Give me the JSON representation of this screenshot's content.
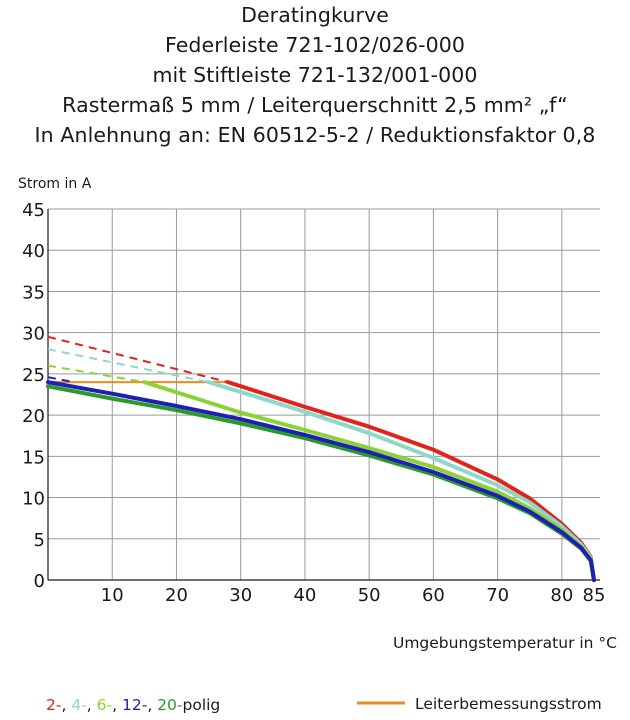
{
  "title_lines": [
    "Deratingkurve",
    "Federleiste 721-102/026-000",
    "mit Stiftleiste 721-132/001-000",
    "Rastermaß 5 mm / Leiterquerschnitt 2,5 mm² „f“",
    "In Anlehnung an: EN 60512-5-2 / Reduktionsfaktor 0,8"
  ],
  "legend": {
    "poles": [
      {
        "text": "2-",
        "color": "#e2231a"
      },
      {
        "text": ", ",
        "color": "#1a1a1a"
      },
      {
        "text": "4-",
        "color": "#8fd8c8"
      },
      {
        "text": ", ",
        "color": "#1a1a1a"
      },
      {
        "text": "6-",
        "color": "#8bd13a"
      },
      {
        "text": ", ",
        "color": "#1a1a1a"
      },
      {
        "text": "12-",
        "color": "#1f1fb4"
      },
      {
        "text": ", ",
        "color": "#1a1a1a"
      },
      {
        "text": "20-",
        "color": "#2a9a2a"
      },
      {
        "text": "polig",
        "color": "#1a1a1a"
      }
    ],
    "rated_current_label": "Leiterbemessungsstrom",
    "rated_current_color": "#f08a1c"
  },
  "chart_data": {
    "type": "line",
    "title": "Deratingkurve",
    "xlabel": "Umgebungstemperatur in °C",
    "ylabel": "Strom in A",
    "xlim": [
      0,
      86
    ],
    "ylim": [
      0,
      45
    ],
    "x_ticks": [
      10,
      20,
      30,
      40,
      50,
      60,
      70,
      80,
      85
    ],
    "x_tick_labels": [
      "10",
      "20",
      "30",
      "40",
      "50",
      "60",
      "70",
      "80",
      "85"
    ],
    "y_ticks": [
      0,
      5,
      10,
      15,
      20,
      25,
      30,
      35,
      40,
      45
    ],
    "y_tick_labels": [
      "0",
      "5",
      "10",
      "15",
      "20",
      "25",
      "30",
      "35",
      "40",
      "45"
    ],
    "grid": true,
    "legend_position": "bottom",
    "series": [
      {
        "name": "2-polig",
        "color": "#e2231a",
        "dashed_points": [
          [
            0,
            29.5
          ],
          [
            28,
            24
          ]
        ],
        "points": [
          [
            28,
            24
          ],
          [
            40,
            21
          ],
          [
            50,
            18.6
          ],
          [
            60,
            15.8
          ],
          [
            70,
            12.2
          ],
          [
            75,
            9.9
          ],
          [
            80,
            6.8
          ],
          [
            83,
            4.5
          ],
          [
            84.5,
            2.8
          ],
          [
            85,
            0
          ]
        ]
      },
      {
        "name": "4-polig",
        "color": "#8fd8c8",
        "dashed_points": [
          [
            0,
            28
          ],
          [
            25,
            24
          ]
        ],
        "points": [
          [
            25,
            24
          ],
          [
            40,
            20.4
          ],
          [
            50,
            17.8
          ],
          [
            60,
            14.8
          ],
          [
            70,
            11.5
          ],
          [
            75,
            9.4
          ],
          [
            80,
            6.5
          ],
          [
            83,
            4.3
          ],
          [
            84.5,
            2.7
          ],
          [
            85,
            0
          ]
        ]
      },
      {
        "name": "6-polig",
        "color": "#8bd13a",
        "dashed_points": [
          [
            0,
            26
          ],
          [
            15,
            24
          ]
        ],
        "points": [
          [
            15,
            24
          ],
          [
            30,
            20.3
          ],
          [
            40,
            18.2
          ],
          [
            50,
            16
          ],
          [
            60,
            13.7
          ],
          [
            70,
            10.7
          ],
          [
            75,
            8.7
          ],
          [
            80,
            6.1
          ],
          [
            83,
            4
          ],
          [
            84.5,
            2.5
          ],
          [
            85,
            0
          ]
        ]
      },
      {
        "name": "12-polig",
        "color": "#1f1fb4",
        "dashed_points": [
          [
            0,
            24.6
          ],
          [
            4,
            24
          ]
        ],
        "points": [
          [
            0,
            24
          ],
          [
            10,
            22.6
          ],
          [
            20,
            21.1
          ],
          [
            30,
            19.5
          ],
          [
            40,
            17.6
          ],
          [
            50,
            15.5
          ],
          [
            60,
            13.1
          ],
          [
            70,
            10.2
          ],
          [
            75,
            8.3
          ],
          [
            80,
            5.8
          ],
          [
            83,
            3.9
          ],
          [
            84.5,
            2.4
          ],
          [
            85,
            0
          ]
        ]
      },
      {
        "name": "20-polig",
        "color": "#2a9a2a",
        "dashed_points": [],
        "points": [
          [
            0,
            23.5
          ],
          [
            10,
            22
          ],
          [
            20,
            20.6
          ],
          [
            30,
            19
          ],
          [
            40,
            17.2
          ],
          [
            50,
            15.1
          ],
          [
            60,
            12.8
          ],
          [
            70,
            9.9
          ],
          [
            75,
            8.1
          ],
          [
            80,
            5.6
          ],
          [
            83,
            3.8
          ],
          [
            84.5,
            2.3
          ],
          [
            85,
            0
          ]
        ]
      },
      {
        "name": "Leiterbemessungsstrom",
        "color": "#f08a1c",
        "dashed_points": [],
        "points": [
          [
            0,
            24
          ],
          [
            28,
            24
          ]
        ]
      }
    ]
  }
}
